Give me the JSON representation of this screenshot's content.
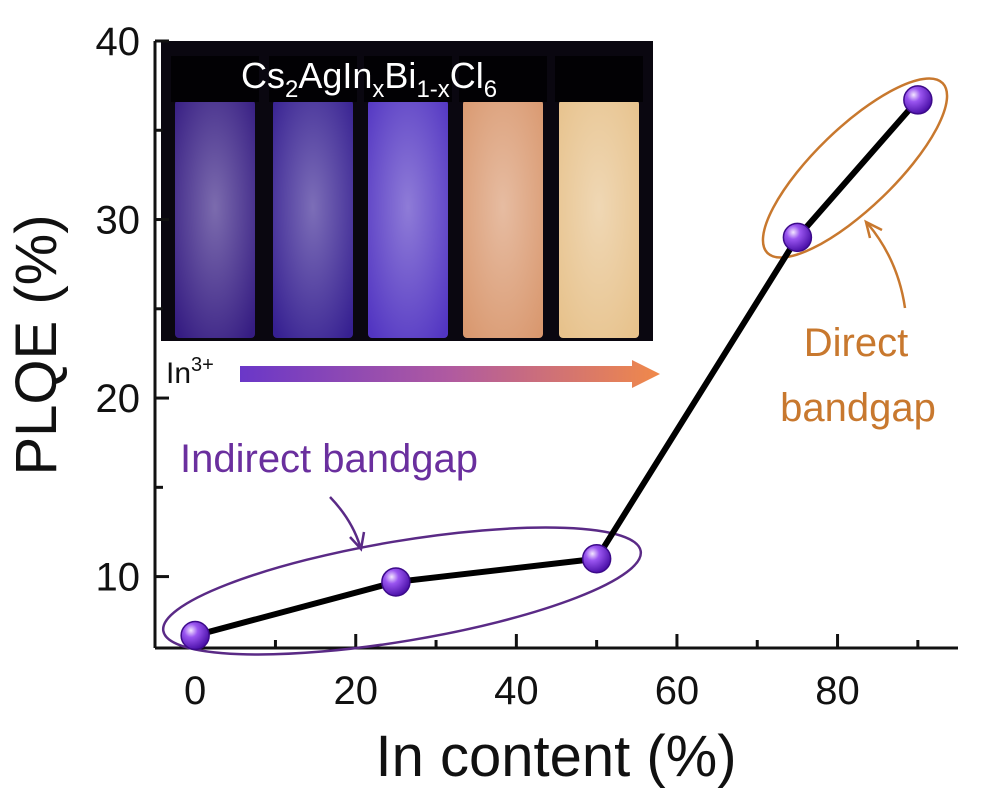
{
  "chart_data": {
    "type": "line",
    "xlabel": "In content (%)",
    "ylabel": "PLQE (%)",
    "xlim": [
      -5,
      95
    ],
    "ylim": [
      6,
      40
    ],
    "x_ticks": [
      0,
      20,
      40,
      60,
      80
    ],
    "y_ticks": [
      10,
      20,
      30,
      40
    ],
    "series": [
      {
        "name": "PLQE",
        "x": [
          0,
          25,
          50,
          75,
          90
        ],
        "values": [
          6.7,
          9.7,
          11.0,
          29.0,
          36.7
        ]
      }
    ],
    "annotations": {
      "indirect": "Indirect bandgap",
      "direct_line1": "Direct",
      "direct_line2": "bandgap"
    },
    "inset": {
      "formula_parts": [
        "Cs",
        "2",
        "AgIn",
        "x",
        "Bi",
        "1-x",
        "Cl",
        "6"
      ],
      "ion_base": "In",
      "ion_charge": "3+",
      "vial_glow_colors": [
        "#3a1f8f",
        "#3b23a0",
        "#5a3bd6",
        "#f0a87a",
        "#ffd79a"
      ]
    },
    "colors": {
      "marker": "#7b2be0",
      "indirect": "#6a2f9e",
      "direct": "#c8782e"
    }
  }
}
